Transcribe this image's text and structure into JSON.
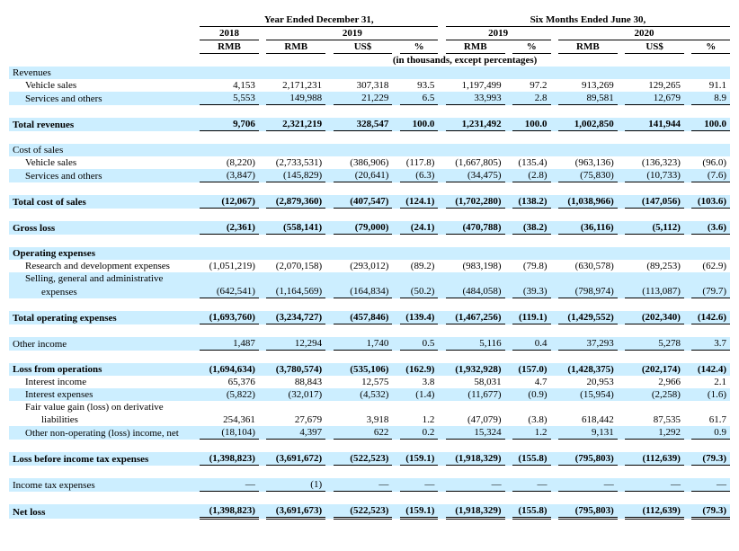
{
  "header": {
    "year_period": "Year Ended December 31,",
    "six_period": "Six Months Ended June 30,",
    "y2018": "2018",
    "y2019": "2019",
    "h2019": "2019",
    "h2020": "2020",
    "rmb": "RMB",
    "usd": "US$",
    "pct": "%",
    "units": "(in thousands, except percentages)"
  },
  "sections": {
    "revenues": "Revenues",
    "cost_of_sales": "Cost of sales",
    "operating_expenses": "Operating expenses"
  },
  "rows": {
    "vehicle_sales": {
      "label": "Vehicle sales",
      "c": [
        "4,153",
        "2,171,231",
        "307,318",
        "93.5",
        "1,197,499",
        "97.2",
        "913,269",
        "129,265",
        "91.1"
      ]
    },
    "services": {
      "label": "Services and others",
      "c": [
        "5,553",
        "149,988",
        "21,229",
        "6.5",
        "33,993",
        "2.8",
        "89,581",
        "12,679",
        "8.9"
      ]
    },
    "total_rev": {
      "label": "Total revenues",
      "c": [
        "9,706",
        "2,321,219",
        "328,547",
        "100.0",
        "1,231,492",
        "100.0",
        "1,002,850",
        "141,944",
        "100.0"
      ]
    },
    "cos_vehicle": {
      "label": "Vehicle sales",
      "c": [
        "(8,220)",
        "(2,733,531)",
        "(386,906)",
        "(117.8)",
        "(1,667,805)",
        "(135.4)",
        "(963,136)",
        "(136,323)",
        "(96.0)"
      ]
    },
    "cos_services": {
      "label": "Services and others",
      "c": [
        "(3,847)",
        "(145,829)",
        "(20,641)",
        "(6.3)",
        "(34,475)",
        "(2.8)",
        "(75,830)",
        "(10,733)",
        "(7.6)"
      ]
    },
    "total_cos": {
      "label": "Total cost of sales",
      "c": [
        "(12,067)",
        "(2,879,360)",
        "(407,547)",
        "(124.1)",
        "(1,702,280)",
        "(138.2)",
        "(1,038,966)",
        "(147,056)",
        "(103.6)"
      ]
    },
    "gross_loss": {
      "label": "Gross loss",
      "c": [
        "(2,361)",
        "(558,141)",
        "(79,000)",
        "(24.1)",
        "(470,788)",
        "(38.2)",
        "(36,116)",
        "(5,112)",
        "(3.6)"
      ]
    },
    "rnd": {
      "label": "Research and development expenses",
      "c": [
        "(1,051,219)",
        "(2,070,158)",
        "(293,012)",
        "(89.2)",
        "(983,198)",
        "(79.8)",
        "(630,578)",
        "(89,253)",
        "(62.9)"
      ]
    },
    "sga1": {
      "label": "Selling, general and administrative"
    },
    "sga2": {
      "label": "expenses",
      "c": [
        "(642,541)",
        "(1,164,569)",
        "(164,834)",
        "(50.2)",
        "(484,058)",
        "(39.3)",
        "(798,974)",
        "(113,087)",
        "(79.7)"
      ]
    },
    "total_opex": {
      "label": "Total operating expenses",
      "c": [
        "(1,693,760)",
        "(3,234,727)",
        "(457,846)",
        "(139.4)",
        "(1,467,256)",
        "(119.1)",
        "(1,429,552)",
        "(202,340)",
        "(142.6)"
      ]
    },
    "other_income": {
      "label": "Other income",
      "c": [
        "1,487",
        "12,294",
        "1,740",
        "0.5",
        "5,116",
        "0.4",
        "37,293",
        "5,278",
        "3.7"
      ]
    },
    "loss_ops": {
      "label": "Loss from operations",
      "c": [
        "(1,694,634)",
        "(3,780,574)",
        "(535,106)",
        "(162.9)",
        "(1,932,928)",
        "(157.0)",
        "(1,428,375)",
        "(202,174)",
        "(142.4)"
      ]
    },
    "int_income": {
      "label": "Interest income",
      "c": [
        "65,376",
        "88,843",
        "12,575",
        "3.8",
        "58,031",
        "4.7",
        "20,953",
        "2,966",
        "2.1"
      ]
    },
    "int_exp": {
      "label": "Interest expenses",
      "c": [
        "(5,822)",
        "(32,017)",
        "(4,532)",
        "(1.4)",
        "(11,677)",
        "(0.9)",
        "(15,954)",
        "(2,258)",
        "(1.6)"
      ]
    },
    "fv1": {
      "label": "Fair value gain (loss) on derivative"
    },
    "fv2": {
      "label": "liabilities",
      "c": [
        "254,361",
        "27,679",
        "3,918",
        "1.2",
        "(47,079)",
        "(3.8)",
        "618,442",
        "87,535",
        "61.7"
      ]
    },
    "other_nonop": {
      "label": "Other non-operating (loss) income, net",
      "c": [
        "(18,104)",
        "4,397",
        "622",
        "0.2",
        "15,324",
        "1.2",
        "9,131",
        "1,292",
        "0.9"
      ]
    },
    "loss_pretax": {
      "label": "Loss before income tax expenses",
      "c": [
        "(1,398,823)",
        "(3,691,672)",
        "(522,523)",
        "(159.1)",
        "(1,918,329)",
        "(155.8)",
        "(795,803)",
        "(112,639)",
        "(79.3)"
      ]
    },
    "tax": {
      "label": "Income tax expenses",
      "c": [
        "—",
        "(1)",
        "—",
        "—",
        "—",
        "—",
        "—",
        "—",
        "—"
      ]
    },
    "net_loss": {
      "label": "Net loss",
      "c": [
        "(1,398,823)",
        "(3,691,673)",
        "(522,523)",
        "(159.1)",
        "(1,918,329)",
        "(155.8)",
        "(795,803)",
        "(112,639)",
        "(79.3)"
      ]
    }
  }
}
